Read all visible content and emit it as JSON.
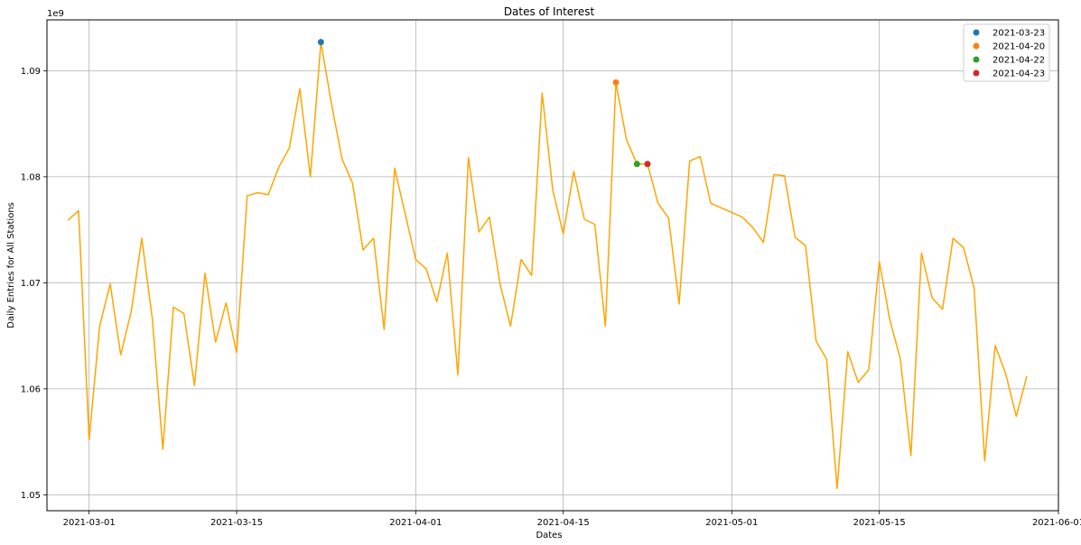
{
  "chart_data": {
    "type": "line",
    "title": "Dates of Interest",
    "xlabel": "Dates",
    "ylabel": "Daily Entries for All Stations",
    "y_offset_label": "1e9",
    "y_scale": 1000000000,
    "xlim": [
      "2021-02-25",
      "2021-06-01"
    ],
    "ylim": [
      1.0485,
      1.0948
    ],
    "x_ticks": [
      "2021-03-01",
      "2021-03-15",
      "2021-04-01",
      "2021-04-15",
      "2021-05-01",
      "2021-05-15",
      "2021-06-01"
    ],
    "y_ticks": [
      1.05,
      1.06,
      1.07,
      1.08,
      1.09
    ],
    "y_tick_labels": [
      "1.05",
      "1.06",
      "1.07",
      "1.08",
      "1.09"
    ],
    "grid": true,
    "legend_position": "top-right",
    "line_color": "#ffa500",
    "series": [
      {
        "dates": [
          "2021-02-27",
          "2021-02-28",
          "2021-03-01",
          "2021-03-02",
          "2021-03-03",
          "2021-03-04",
          "2021-03-05",
          "2021-03-06",
          "2021-03-07",
          "2021-03-08",
          "2021-03-09",
          "2021-03-10",
          "2021-03-11",
          "2021-03-12",
          "2021-03-13",
          "2021-03-14",
          "2021-03-15",
          "2021-03-16",
          "2021-03-17",
          "2021-03-18",
          "2021-03-19",
          "2021-03-20",
          "2021-03-21",
          "2021-03-22",
          "2021-03-23",
          "2021-03-24",
          "2021-03-25",
          "2021-03-26",
          "2021-03-27",
          "2021-03-28",
          "2021-03-29",
          "2021-03-30",
          "2021-03-31",
          "2021-04-01",
          "2021-04-02",
          "2021-04-03",
          "2021-04-04",
          "2021-04-05",
          "2021-04-06",
          "2021-04-07",
          "2021-04-08",
          "2021-04-09",
          "2021-04-10",
          "2021-04-11",
          "2021-04-12",
          "2021-04-13",
          "2021-04-14",
          "2021-04-15",
          "2021-04-16",
          "2021-04-17",
          "2021-04-18",
          "2021-04-19",
          "2021-04-20",
          "2021-04-21",
          "2021-04-22",
          "2021-04-23",
          "2021-04-24",
          "2021-04-25",
          "2021-04-26",
          "2021-04-27",
          "2021-04-28",
          "2021-04-29",
          "2021-05-02",
          "2021-05-03",
          "2021-05-04",
          "2021-05-05",
          "2021-05-06",
          "2021-05-07",
          "2021-05-08",
          "2021-05-09",
          "2021-05-10",
          "2021-05-11",
          "2021-05-12",
          "2021-05-13",
          "2021-05-14",
          "2021-05-15",
          "2021-05-16",
          "2021-05-17",
          "2021-05-18",
          "2021-05-19",
          "2021-05-20",
          "2021-05-21",
          "2021-05-22",
          "2021-05-23",
          "2021-05-24",
          "2021-05-25",
          "2021-05-26",
          "2021-05-27",
          "2021-05-28",
          "2021-05-29"
        ],
        "values": [
          1.0759,
          1.0768,
          1.0552,
          1.0659,
          1.0699,
          1.0632,
          1.0673,
          1.0742,
          1.0666,
          1.0543,
          1.0677,
          1.0671,
          1.0603,
          1.0709,
          1.0644,
          1.0681,
          1.0634,
          1.0782,
          1.0785,
          1.0783,
          1.0809,
          1.0827,
          1.0883,
          1.08,
          1.0927,
          1.0869,
          1.0817,
          1.0794,
          1.0731,
          1.0742,
          1.0656,
          1.0808,
          1.0765,
          1.0722,
          1.0713,
          1.0682,
          1.0728,
          1.0613,
          1.0818,
          1.0748,
          1.0762,
          1.0699,
          1.0659,
          1.0722,
          1.0707,
          1.0879,
          1.0788,
          1.0746,
          1.0805,
          1.076,
          1.0755,
          1.0659,
          1.0889,
          1.0835,
          1.0812,
          1.0812,
          1.0775,
          1.0761,
          1.068,
          1.0815,
          1.0819,
          1.0775,
          1.0762,
          1.0752,
          1.0738,
          1.0802,
          1.0801,
          1.0743,
          1.0735,
          1.0645,
          1.0628,
          1.0506,
          1.0635,
          1.0606,
          1.0618,
          1.072,
          1.0665,
          1.0628,
          1.0537,
          1.0728,
          1.0686,
          1.0675,
          1.0742,
          1.0733,
          1.0695,
          1.0532,
          1.0641,
          1.0614,
          1.0574,
          1.0612
        ]
      }
    ],
    "markers": [
      {
        "name": "2021-03-23",
        "date": "2021-03-23",
        "value": 1.0927,
        "color": "#1f77b4"
      },
      {
        "name": "2021-04-20",
        "date": "2021-04-20",
        "value": 1.0889,
        "color": "#ff7f0e"
      },
      {
        "name": "2021-04-22",
        "date": "2021-04-22",
        "value": 1.0812,
        "color": "#2ca02c"
      },
      {
        "name": "2021-04-23",
        "date": "2021-04-23",
        "value": 1.0812,
        "color": "#d62728"
      }
    ]
  }
}
